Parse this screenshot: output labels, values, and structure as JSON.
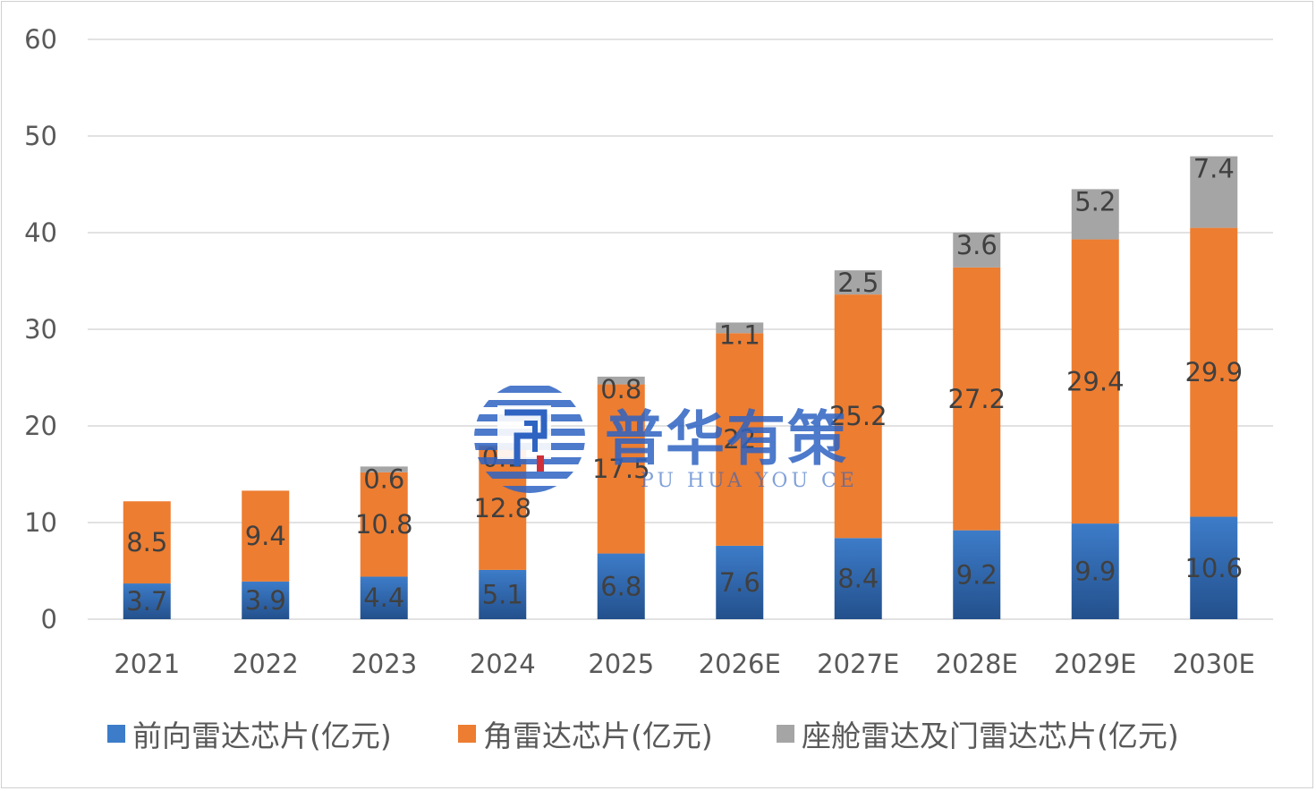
{
  "chart_data": {
    "type": "bar",
    "stacked": true,
    "categories": [
      "2021",
      "2022",
      "2023",
      "2024",
      "2025",
      "2026E",
      "2027E",
      "2028E",
      "2029E",
      "2030E"
    ],
    "series": [
      {
        "name": "前向雷达芯片(亿元)",
        "color": "#3d7cc9",
        "values": [
          3.7,
          3.9,
          4.4,
          5.1,
          6.8,
          7.6,
          8.4,
          9.2,
          9.9,
          10.6
        ]
      },
      {
        "name": "角雷达芯片(亿元)",
        "color": "#ed7d31",
        "values": [
          8.5,
          9.4,
          10.8,
          12.8,
          17.5,
          22.0,
          25.2,
          27.2,
          29.4,
          29.9
        ]
      },
      {
        "name": "座舱雷达及门雷达芯片(亿元)",
        "color": "#a5a5a5",
        "values": [
          0.0,
          0.0,
          0.6,
          0.1,
          0.8,
          1.1,
          2.5,
          3.6,
          5.2,
          7.4
        ]
      }
    ],
    "data_labels": [
      [
        "3.7",
        "3.9",
        "4.4",
        "5.1",
        "6.8",
        "7.6",
        "8.4",
        "9.2",
        "9.9",
        "10.6"
      ],
      [
        "8.5",
        "9.4",
        "10.8",
        "12.8",
        "17.5",
        "22",
        "25.2",
        "27.2",
        "29.4",
        "29.9"
      ],
      [
        "",
        "",
        "0.6",
        "0.1",
        "0.8",
        "1.1",
        "2.5",
        "3.6",
        "5.2",
        "7.4"
      ]
    ],
    "ylim": [
      0,
      60
    ],
    "yticks": [
      "0",
      "10",
      "20",
      "30",
      "40",
      "50",
      "60"
    ],
    "grid": true,
    "legend_position": "bottom",
    "title": "",
    "xlabel": "",
    "ylabel": ""
  },
  "watermark": {
    "text": "普华有策",
    "subtext": "PU HUA YOU CE"
  }
}
